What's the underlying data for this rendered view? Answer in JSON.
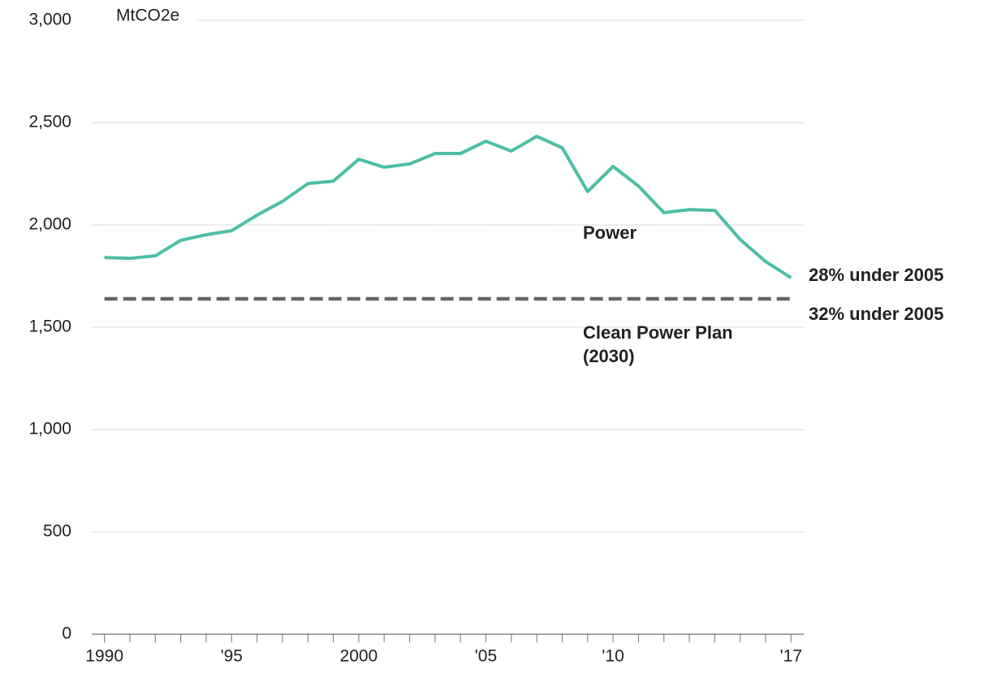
{
  "chart_data": {
    "type": "line",
    "y_axis_label": "MtCO2e",
    "x": [
      1990,
      1991,
      1992,
      1993,
      1994,
      1995,
      1996,
      1997,
      1998,
      1999,
      2000,
      2001,
      2002,
      2003,
      2004,
      2005,
      2006,
      2007,
      2008,
      2009,
      2010,
      2011,
      2012,
      2013,
      2014,
      2015,
      2016,
      2017
    ],
    "series": [
      {
        "name": "Power",
        "color": "#4dbea5",
        "values": [
          1841,
          1837,
          1849,
          1925,
          1952,
          1972,
          2048,
          2115,
          2202,
          2214,
          2321,
          2282,
          2298,
          2349,
          2349,
          2409,
          2361,
          2433,
          2377,
          2163,
          2286,
          2190,
          2060,
          2075,
          2071,
          1929,
          1821,
          1742
        ]
      }
    ],
    "reference_line": {
      "value": 1639,
      "x": [
        1990,
        2017
      ],
      "color": "#666666",
      "label": "Clean Power Plan (2030)"
    },
    "annotations": [
      "28% under 2005",
      "32% under 2005"
    ],
    "xlim": [
      1989.5,
      2017.5
    ],
    "xticks": [
      {
        "value": 1990,
        "label": "1990"
      },
      {
        "value": 1995,
        "label": "'95"
      },
      {
        "value": 2000,
        "label": "2000"
      },
      {
        "value": 2005,
        "label": "'05"
      },
      {
        "value": 2010,
        "label": "'10"
      },
      {
        "value": 2017,
        "label": "'17"
      }
    ],
    "xminor_ticks": [
      1990,
      1991,
      1992,
      1993,
      1994,
      1995,
      1996,
      1997,
      1998,
      1999,
      2000,
      2001,
      2002,
      2003,
      2004,
      2005,
      2006,
      2007,
      2008,
      2009,
      2010,
      2011,
      2012,
      2013,
      2014,
      2015,
      2016,
      2017
    ],
    "ylim": [
      0,
      3000
    ],
    "yticks": [
      0,
      500,
      {
        "value": 1000,
        "label": "1,000"
      },
      {
        "value": 1500,
        "label": "1,500"
      },
      {
        "value": 2000,
        "label": "2,000"
      },
      {
        "value": 2500,
        "label": "2,500"
      },
      {
        "value": 3000,
        "label": "3,000"
      }
    ],
    "grid": true
  }
}
